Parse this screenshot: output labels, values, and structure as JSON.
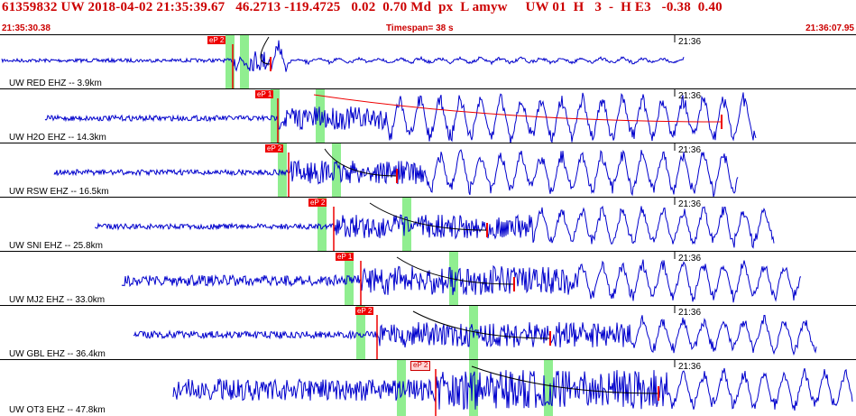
{
  "header": {
    "title": "61359832 UW 2018-04-02 21:35:39.67   46.2713 -119.4725   0.02  0.70 Md  px  L amyw     UW 01  H   3  -  H E3   -0.38  0.40",
    "start_time": "21:35:30.38",
    "timespan": "Timespan=  38 s",
    "end_time": "21:36:07.95"
  },
  "colors": {
    "trace": "#0000cc",
    "pick": "#ee0000",
    "window": "#90ee90",
    "header": "#cc0000"
  },
  "stations": [
    {
      "label": "UW RED EHZ -- 3.9km",
      "tick": "21:36",
      "pick": "eP 2"
    },
    {
      "label": "UW H2O EHZ -- 14.3km",
      "tick": "21:36",
      "pick": "eP 1"
    },
    {
      "label": "UW RSW EHZ -- 16.5km",
      "tick": "21:36",
      "pick": "eP 2"
    },
    {
      "label": "UW SNI EHZ -- 25.8km",
      "tick": "21:36",
      "pick": "eP 2"
    },
    {
      "label": "UW MJ2 EHZ -- 33.0km",
      "tick": "21:36",
      "pick": "eP 1"
    },
    {
      "label": "UW GBL EHZ -- 36.4km",
      "tick": "21:36",
      "pick": "eP 2"
    },
    {
      "label": "UW OT3 EHZ -- 47.8km",
      "tick": "21:36",
      "pick": "eP 2"
    }
  ]
}
